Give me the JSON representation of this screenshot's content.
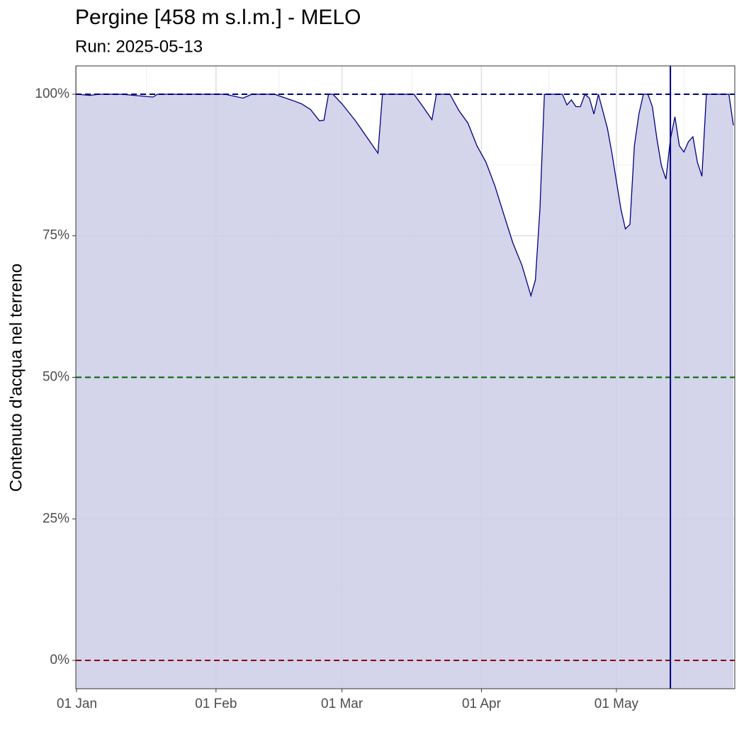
{
  "chart_data": {
    "type": "area",
    "title": "Pergine [458 m s.l.m.] - MELO",
    "subtitle": "Run: 2025-05-13",
    "y_label": "Contenuto d'acqua nel terreno",
    "x": [
      "01-01",
      "01-04",
      "01-06",
      "01-11",
      "01-18",
      "01-19",
      "02-03",
      "02-07",
      "02-09",
      "02-14",
      "02-18",
      "02-20",
      "02-22",
      "02-24",
      "02-25",
      "02-26",
      "02-27",
      "03-01",
      "03-04",
      "03-09",
      "03-10",
      "03-17",
      "03-19",
      "03-21",
      "03-22",
      "03-25",
      "03-27",
      "03-29",
      "03-31",
      "04-02",
      "04-04",
      "04-06",
      "04-08",
      "04-10",
      "04-12",
      "04-13",
      "04-14",
      "04-15",
      "04-19",
      "04-20",
      "04-21",
      "04-22",
      "04-23",
      "04-24",
      "04-25",
      "04-26",
      "04-27",
      "04-29",
      "04-30",
      "05-02",
      "05-03",
      "05-04",
      "05-05",
      "05-06",
      "05-07",
      "05-08",
      "05-09",
      "05-10",
      "05-11",
      "05-12",
      "05-13",
      "05-14",
      "05-15",
      "05-16",
      "05-17",
      "05-18",
      "05-19",
      "05-20",
      "05-21",
      "05-26",
      "05-27"
    ],
    "series": [
      {
        "color": "#000080",
        "fill": "#ccccE8",
        "values": [
          100,
          99.8,
          100,
          100,
          99.5,
          100,
          100,
          99.3,
          100,
          100,
          98.9,
          98.3,
          97.3,
          95.3,
          95.4,
          100,
          100,
          98.3,
          95.3,
          89.6,
          100,
          100,
          97.8,
          95.5,
          100,
          100,
          97.1,
          94.9,
          90.9,
          88,
          83.8,
          78.7,
          73.7,
          69.8,
          64.4,
          67.2,
          79.7,
          100,
          100,
          98.1,
          99,
          97.8,
          97.8,
          100,
          99.3,
          96.5,
          100,
          94,
          89.6,
          79.7,
          76.2,
          77,
          90.9,
          96.5,
          100,
          100,
          97.8,
          92.1,
          87.4,
          85,
          92,
          96,
          90.9,
          89.8,
          91.6,
          92.5,
          88,
          85.5,
          100,
          100,
          94.5
        ]
      }
    ],
    "xlim": [
      "01-01",
      "05-27"
    ],
    "xticks": [
      {
        "value": "01-01",
        "label": "01 Jan"
      },
      {
        "value": "02-01",
        "label": "01 Feb"
      },
      {
        "value": "03-01",
        "label": "01 Mar"
      },
      {
        "value": "04-01",
        "label": "01 Apr"
      },
      {
        "value": "05-01",
        "label": "01 May"
      }
    ],
    "ylim": [
      -5,
      105
    ],
    "yticks": [
      {
        "value": 0,
        "label": "0%"
      },
      {
        "value": 25,
        "label": "25%"
      },
      {
        "value": 50,
        "label": "50%"
      },
      {
        "value": 75,
        "label": "75%"
      },
      {
        "value": 100,
        "label": "100%"
      }
    ],
    "hlines": [
      {
        "value": 100,
        "color": "#000080"
      },
      {
        "value": 50,
        "color": "#006400"
      },
      {
        "value": 0,
        "color": "#8b0000"
      }
    ],
    "vline": {
      "value": "05-13",
      "color": "#000080"
    },
    "grid": true
  }
}
